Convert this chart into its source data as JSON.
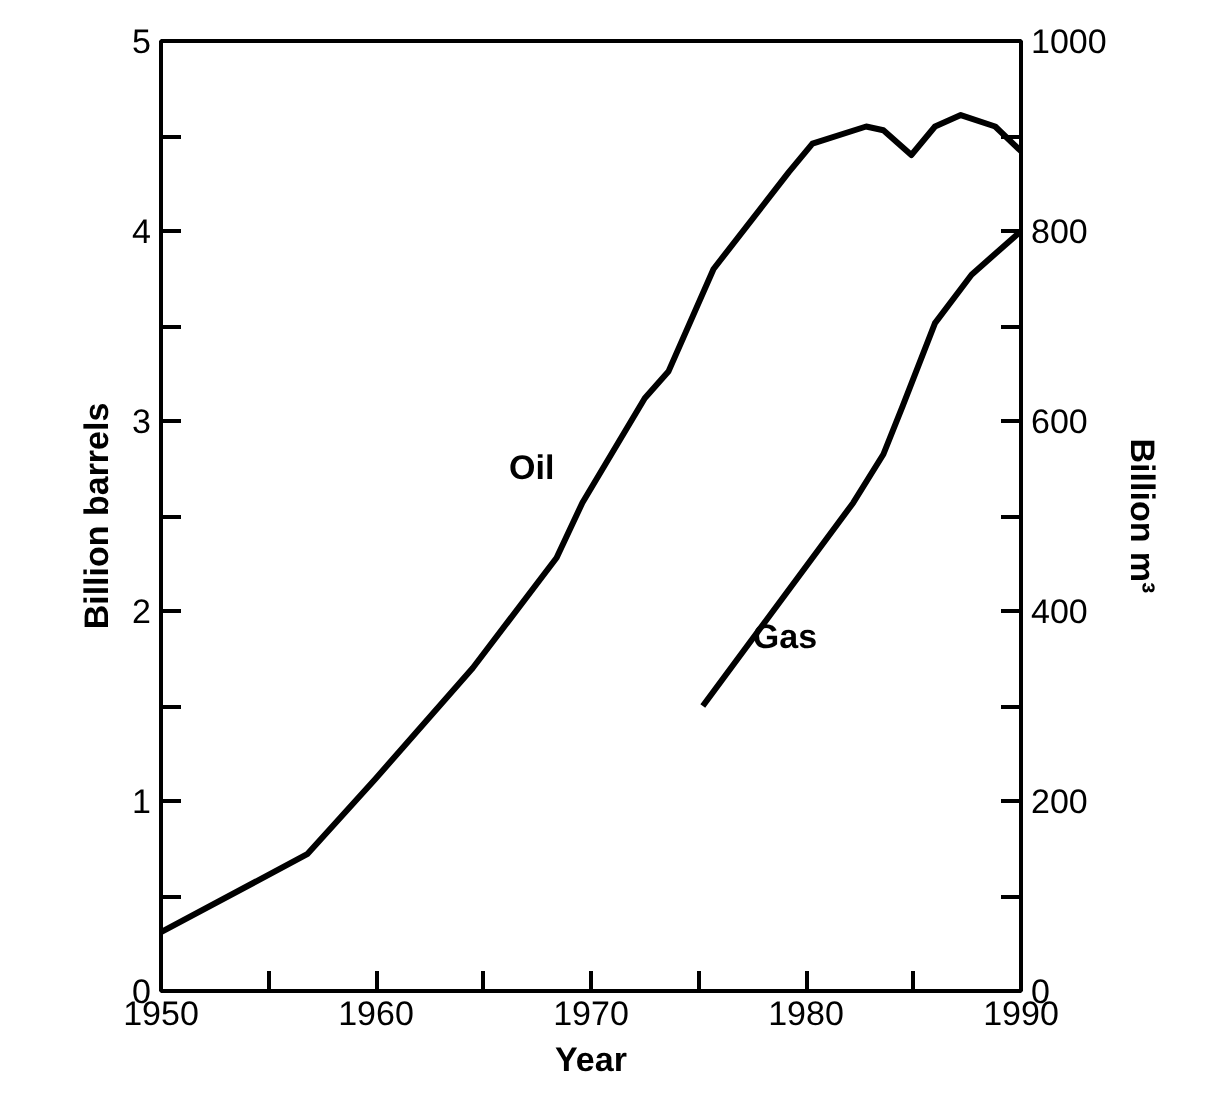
{
  "chart_data": {
    "type": "line",
    "xlabel": "Year",
    "ylabel": "Billion barrels",
    "y2label": "Billion m³",
    "xlim": [
      1950,
      1990
    ],
    "ylim": [
      0,
      5
    ],
    "y2lim": [
      0,
      1000
    ],
    "xticks": [
      1950,
      {
        "value": 1955,
        "label": null
      },
      1960,
      {
        "value": 1965,
        "label": null
      },
      1970,
      {
        "value": 1975,
        "label": null
      },
      1980,
      {
        "value": 1985,
        "label": null
      },
      1990
    ],
    "yticks": [
      0,
      {
        "value": 0.5,
        "label": null
      },
      1,
      {
        "value": 1.5,
        "label": null
      },
      2,
      {
        "value": 2.5,
        "label": null
      },
      3,
      {
        "value": 3.5,
        "label": null
      },
      4,
      {
        "value": 4.5,
        "label": null
      },
      5
    ],
    "y2ticks": [
      0,
      {
        "value": 100,
        "label": null
      },
      200,
      {
        "value": 300,
        "label": null
      },
      400,
      {
        "value": 500,
        "label": null
      },
      600,
      {
        "value": 700,
        "label": null
      },
      800,
      {
        "value": 900,
        "label": null
      },
      1000
    ],
    "grid": false,
    "series": [
      {
        "name": "Oil",
        "color": "#000000",
        "x": [
          1950,
          1956.8,
          1960,
          1964.5,
          1968.4,
          1969.6,
          1972.5,
          1973.6,
          1975.7,
          1979.2,
          1980.3,
          1982.8,
          1983.6,
          1984.9,
          1986,
          1987.2,
          1988.8,
          1990
        ],
        "values": [
          0.31,
          0.72,
          1.12,
          1.7,
          2.28,
          2.57,
          3.12,
          3.26,
          3.8,
          4.31,
          4.46,
          4.55,
          4.53,
          4.4,
          4.55,
          4.61,
          4.55,
          4.42
        ]
      },
      {
        "name": "Gas",
        "color": "#000000",
        "axis": "y2",
        "x": [
          1975.2,
          1982.2,
          1983.6,
          1984.5,
          1986,
          1987.7,
          1990
        ],
        "values": [
          300,
          514,
          565,
          616,
          703,
          754,
          800
        ]
      }
    ]
  }
}
